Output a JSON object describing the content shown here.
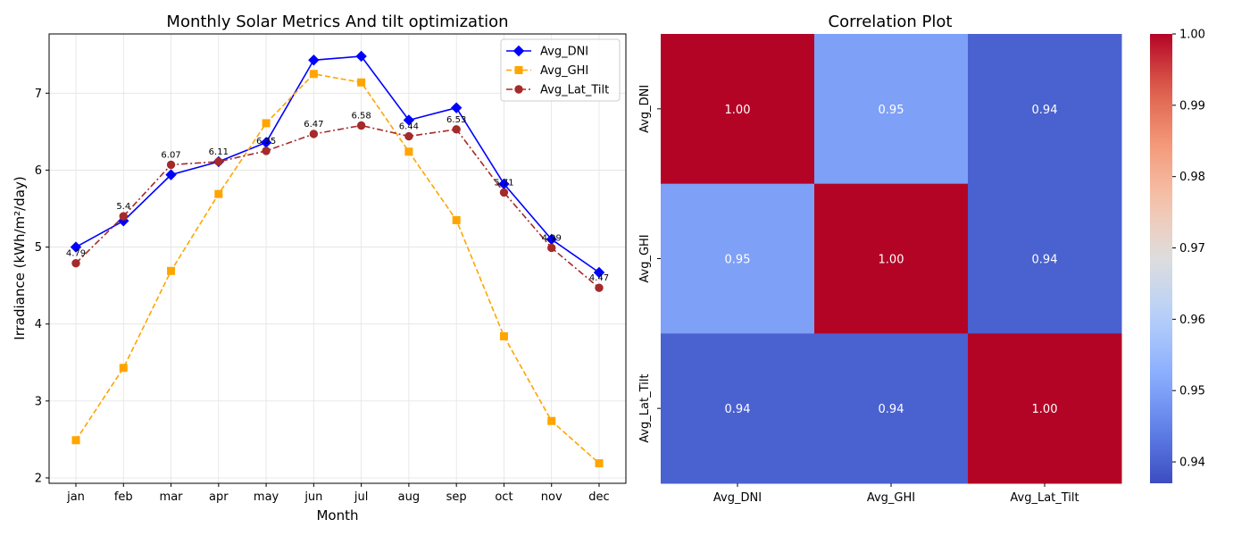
{
  "chart_data": [
    {
      "type": "line",
      "title": "Monthly Solar Metrics And tilt optimization",
      "xlabel": "Month",
      "ylabel": "Irradiance (kWh/m²/day)",
      "categories": [
        "jan",
        "feb",
        "mar",
        "apr",
        "may",
        "jun",
        "jul",
        "aug",
        "sep",
        "oct",
        "nov",
        "dec"
      ],
      "ylim": [
        1.93,
        7.77
      ],
      "yticks": [
        2,
        3,
        4,
        5,
        6,
        7
      ],
      "grid": true,
      "legend_position": "top-right",
      "series": [
        {
          "name": "Avg_DNI",
          "color": "#0000ff",
          "marker": "diamond",
          "linestyle": "solid",
          "values": [
            5.0,
            5.34,
            5.94,
            6.11,
            6.36,
            7.43,
            7.48,
            6.65,
            6.81,
            5.82,
            5.1,
            4.67
          ]
        },
        {
          "name": "Avg_GHI",
          "color": "#ffa500",
          "marker": "square",
          "linestyle": "dashed",
          "values": [
            2.49,
            3.43,
            4.69,
            5.69,
            6.61,
            7.25,
            7.14,
            6.24,
            5.35,
            3.84,
            2.74,
            2.19
          ]
        },
        {
          "name": "Avg_Lat_Tilt",
          "color": "#a52a2a",
          "marker": "circle",
          "linestyle": "dashdot",
          "values": [
            4.79,
            5.4,
            6.07,
            6.11,
            6.25,
            6.47,
            6.58,
            6.44,
            6.53,
            5.71,
            4.99,
            4.47
          ]
        }
      ],
      "point_labels": [
        "4.79",
        "5.4",
        "6.07",
        "6.11",
        "6.25",
        "6.47",
        "6.58",
        "6.44",
        "6.53",
        "5.71",
        "4.99",
        "4.47"
      ]
    },
    {
      "type": "heatmap",
      "title": "Correlation Plot",
      "x_labels": [
        "Avg_DNI",
        "Avg_GHI",
        "Avg_Lat_Tilt"
      ],
      "y_labels": [
        "Avg_DNI",
        "Avg_GHI",
        "Avg_Lat_Tilt"
      ],
      "values": [
        [
          1.0,
          0.95,
          0.94
        ],
        [
          0.95,
          1.0,
          0.94
        ],
        [
          0.94,
          0.94,
          1.0
        ]
      ],
      "cell_labels": [
        [
          "1.00",
          "0.95",
          "0.94"
        ],
        [
          "0.95",
          "1.00",
          "0.94"
        ],
        [
          "0.94",
          "0.94",
          "1.00"
        ]
      ],
      "colormap": "coolwarm",
      "colorbar": {
        "range": [
          0.937,
          1.0
        ],
        "ticks": [
          "0.94",
          "0.95",
          "0.96",
          "0.97",
          "0.98",
          "0.99",
          "1.00"
        ],
        "tick_values": [
          0.94,
          0.95,
          0.96,
          0.97,
          0.98,
          0.99,
          1.0
        ]
      }
    }
  ]
}
